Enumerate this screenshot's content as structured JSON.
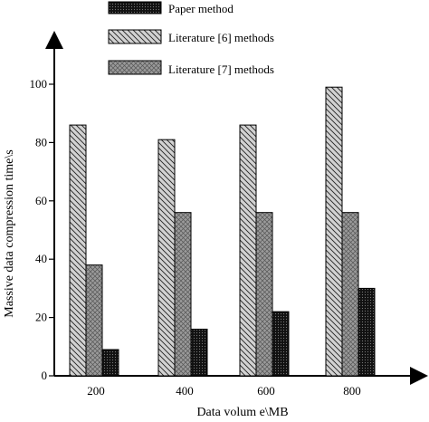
{
  "chart_data": {
    "type": "bar",
    "title": "",
    "xlabel": "Data volum e\\MB",
    "ylabel": "Massive data compression time\\s",
    "categories": [
      "200",
      "400",
      "600",
      "800"
    ],
    "ylim": [
      0,
      100
    ],
    "yticks": [
      "0",
      "20",
      "40",
      "60",
      "80",
      "100"
    ],
    "grid": false,
    "legend_position": "top",
    "series": [
      {
        "name": "Literature [6] methods",
        "values": [
          86,
          81,
          86,
          99
        ],
        "pattern": "diagonal-hatch",
        "color": "#cfcfcf"
      },
      {
        "name": "Literature [7] methods",
        "values": [
          38,
          56,
          56,
          56
        ],
        "pattern": "crosshatch",
        "color": "#8f8f8f"
      },
      {
        "name": "Paper method",
        "values": [
          9,
          16,
          22,
          30
        ],
        "pattern": "dense-dots",
        "color": "#1a1a1a"
      }
    ],
    "legend_order": [
      "Paper method",
      "Literature [6] methods",
      "Literature [7] methods"
    ]
  }
}
